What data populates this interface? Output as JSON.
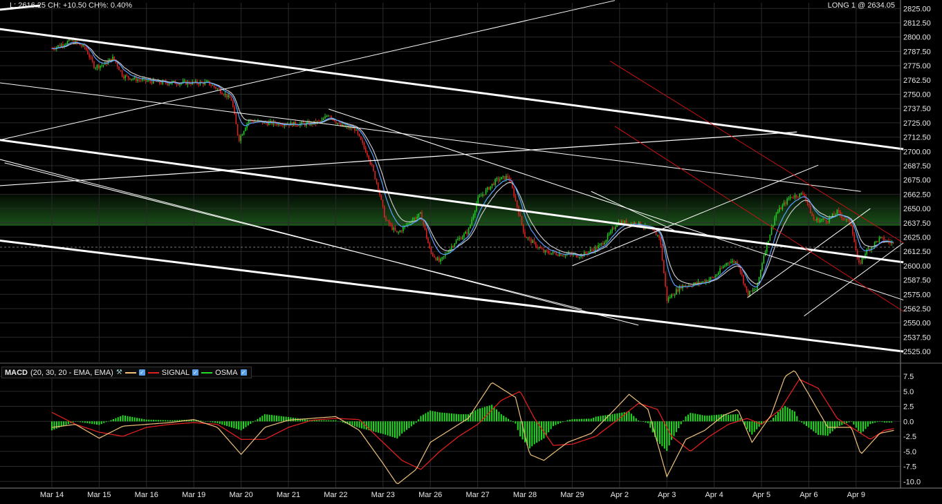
{
  "header": {
    "quote_left": "L: 2616.25 CH: +10.50 CH%: 0.40%",
    "position_right": "LONG 1 @ 2634.05"
  },
  "macd_legend": {
    "name": "MACD",
    "params": "(20, 30, 20 - EMA, EMA)",
    "signal_label": "SIGNAL",
    "osma_label": "OSMA",
    "macd_color": "#f2c27a",
    "signal_color": "#e02020",
    "osma_color": "#22dd22"
  },
  "colors": {
    "background": "#000000",
    "grid": "#2a2a2a",
    "candle_up": "#22cc22",
    "candle_down": "#dd2222",
    "ma_fast": "#5aa0ff",
    "ma_slow": "#c8c8c8",
    "trendline": "#ffffff",
    "channel_red": "#cc1111",
    "zone": "#1d5a1d"
  },
  "chart_data": [
    {
      "type": "candlestick",
      "x_categories": [
        "Mar 14",
        "Mar 15",
        "Mar 16",
        "Mar 19",
        "Mar 20",
        "Mar 21",
        "Mar 22",
        "Mar 23",
        "Mar 26",
        "Mar 27",
        "Mar 28",
        "Mar 29",
        "Apr 2",
        "Apr 3",
        "Apr 4",
        "Apr 5",
        "Apr 6",
        "Apr 9"
      ],
      "y_ticks": [
        "2825.00",
        "2812.50",
        "2800.00",
        "2787.50",
        "2775.00",
        "2762.50",
        "2750.00",
        "2737.50",
        "2725.00",
        "2712.50",
        "2700.00",
        "2687.50",
        "2675.00",
        "2662.50",
        "2650.00",
        "2637.50",
        "2625.00",
        "2612.50",
        "2600.00",
        "2587.50",
        "2575.00",
        "2562.50",
        "2550.00",
        "2537.50",
        "2525.00"
      ],
      "ylim": [
        2516,
        2830
      ],
      "last_price": 2616.25,
      "highlight_zone": [
        2635,
        2662
      ],
      "close_path": [
        [
          0,
          2790
        ],
        [
          0.4,
          2797
        ],
        [
          0.7,
          2791
        ],
        [
          0.9,
          2774
        ],
        [
          1.1,
          2776
        ],
        [
          1.3,
          2782
        ],
        [
          1.5,
          2766
        ],
        [
          1.8,
          2763
        ],
        [
          2.3,
          2760
        ],
        [
          2.9,
          2760
        ],
        [
          3.3,
          2760
        ],
        [
          3.6,
          2752
        ],
        [
          3.8,
          2745
        ],
        [
          3.95,
          2710
        ],
        [
          4.15,
          2727
        ],
        [
          4.5,
          2725
        ],
        [
          5.0,
          2724
        ],
        [
          5.4,
          2724
        ],
        [
          5.7,
          2726
        ],
        [
          5.85,
          2733
        ],
        [
          6.1,
          2722
        ],
        [
          6.4,
          2720
        ],
        [
          6.7,
          2695
        ],
        [
          6.9,
          2668
        ],
        [
          7.05,
          2640
        ],
        [
          7.3,
          2628
        ],
        [
          7.6,
          2640
        ],
        [
          7.8,
          2645
        ],
        [
          8.0,
          2612
        ],
        [
          8.2,
          2603
        ],
        [
          8.5,
          2620
        ],
        [
          8.8,
          2630
        ],
        [
          9.0,
          2658
        ],
        [
          9.4,
          2675
        ],
        [
          9.65,
          2678
        ],
        [
          9.75,
          2665
        ],
        [
          10.0,
          2626
        ],
        [
          10.4,
          2612
        ],
        [
          10.8,
          2610
        ],
        [
          11.2,
          2609
        ],
        [
          11.6,
          2618
        ],
        [
          11.8,
          2628
        ],
        [
          11.95,
          2638
        ],
        [
          12.4,
          2637
        ],
        [
          12.7,
          2630
        ],
        [
          12.85,
          2625
        ],
        [
          13.0,
          2570
        ],
        [
          13.3,
          2582
        ],
        [
          13.7,
          2585
        ],
        [
          14.0,
          2590
        ],
        [
          14.3,
          2604
        ],
        [
          14.5,
          2603
        ],
        [
          14.7,
          2575
        ],
        [
          14.9,
          2580
        ],
        [
          15.05,
          2610
        ],
        [
          15.3,
          2645
        ],
        [
          15.6,
          2660
        ],
        [
          15.9,
          2663
        ],
        [
          16.1,
          2640
        ],
        [
          16.4,
          2640
        ],
        [
          16.6,
          2647
        ],
        [
          16.9,
          2636
        ],
        [
          17.05,
          2600
        ],
        [
          17.2,
          2612
        ],
        [
          17.5,
          2624
        ],
        [
          17.8,
          2619
        ]
      ],
      "overlays": [
        "EMA fast (blue)",
        "EMA slow (white)",
        "trendlines",
        "red descending channel"
      ]
    },
    {
      "type": "line",
      "name": "MACD",
      "y_ticks": [
        "7.5",
        "5.0",
        "2.5",
        "0.0",
        "-2.5",
        "-5.0",
        "-7.5",
        "-10.0"
      ],
      "ylim": [
        -11,
        9
      ],
      "macd": [
        [
          0,
          -1
        ],
        [
          0.5,
          -0.5
        ],
        [
          1.0,
          -2.8
        ],
        [
          1.5,
          -0.8
        ],
        [
          2.0,
          -0.5
        ],
        [
          2.5,
          -0.2
        ],
        [
          3.0,
          0.3
        ],
        [
          3.5,
          -1.0
        ],
        [
          4.0,
          -5.5
        ],
        [
          4.5,
          -1.0
        ],
        [
          5.0,
          0.2
        ],
        [
          5.5,
          0.5
        ],
        [
          6.0,
          0.8
        ],
        [
          6.5,
          -1.5
        ],
        [
          7.0,
          -7.0
        ],
        [
          7.3,
          -10.5
        ],
        [
          7.7,
          -8.0
        ],
        [
          8.0,
          -3.5
        ],
        [
          8.4,
          -1.5
        ],
        [
          8.8,
          0.5
        ],
        [
          9.3,
          6.5
        ],
        [
          9.8,
          4.0
        ],
        [
          10.1,
          -5.5
        ],
        [
          10.4,
          -6.5
        ],
        [
          10.9,
          -3.5
        ],
        [
          11.4,
          -2.0
        ],
        [
          11.9,
          2.0
        ],
        [
          12.2,
          4.5
        ],
        [
          12.6,
          2.0
        ],
        [
          13.0,
          -9.2
        ],
        [
          13.4,
          -3.0
        ],
        [
          13.8,
          -1.5
        ],
        [
          14.2,
          1.0
        ],
        [
          14.5,
          2.0
        ],
        [
          14.8,
          -3.5
        ],
        [
          15.2,
          1.0
        ],
        [
          15.5,
          7.5
        ],
        [
          15.7,
          8.5
        ],
        [
          16.0,
          4.5
        ],
        [
          16.4,
          -1.0
        ],
        [
          16.9,
          -1.0
        ],
        [
          17.1,
          -5.5
        ],
        [
          17.5,
          -2.0
        ],
        [
          17.8,
          -1.5
        ]
      ],
      "signal": [
        [
          0,
          1.5
        ],
        [
          0.5,
          -0.5
        ],
        [
          1.0,
          -1.8
        ],
        [
          1.5,
          -2.5
        ],
        [
          2.0,
          -1.0
        ],
        [
          2.5,
          -0.5
        ],
        [
          3.0,
          -0.2
        ],
        [
          3.5,
          -0.5
        ],
        [
          4.0,
          -3.0
        ],
        [
          4.5,
          -3.0
        ],
        [
          5.0,
          -1.0
        ],
        [
          5.5,
          0.2
        ],
        [
          6.0,
          0.5
        ],
        [
          6.5,
          0.3
        ],
        [
          7.0,
          -3.5
        ],
        [
          7.4,
          -6.5
        ],
        [
          7.8,
          -8.0
        ],
        [
          8.2,
          -5.0
        ],
        [
          8.6,
          -2.5
        ],
        [
          9.0,
          -0.5
        ],
        [
          9.5,
          3.5
        ],
        [
          9.9,
          5.0
        ],
        [
          10.2,
          0.5
        ],
        [
          10.6,
          -4.0
        ],
        [
          11.0,
          -3.8
        ],
        [
          11.5,
          -2.5
        ],
        [
          12.0,
          0.5
        ],
        [
          12.4,
          3.0
        ],
        [
          12.8,
          2.0
        ],
        [
          13.1,
          -2.5
        ],
        [
          13.5,
          -5.0
        ],
        [
          13.9,
          -2.5
        ],
        [
          14.3,
          -0.5
        ],
        [
          14.7,
          0.5
        ],
        [
          15.0,
          -0.5
        ],
        [
          15.4,
          2.0
        ],
        [
          15.8,
          7.0
        ],
        [
          16.2,
          5.5
        ],
        [
          16.6,
          0.5
        ],
        [
          17.0,
          -1.5
        ],
        [
          17.3,
          -3.0
        ],
        [
          17.6,
          -1.5
        ],
        [
          17.8,
          -1.2
        ]
      ]
    }
  ]
}
